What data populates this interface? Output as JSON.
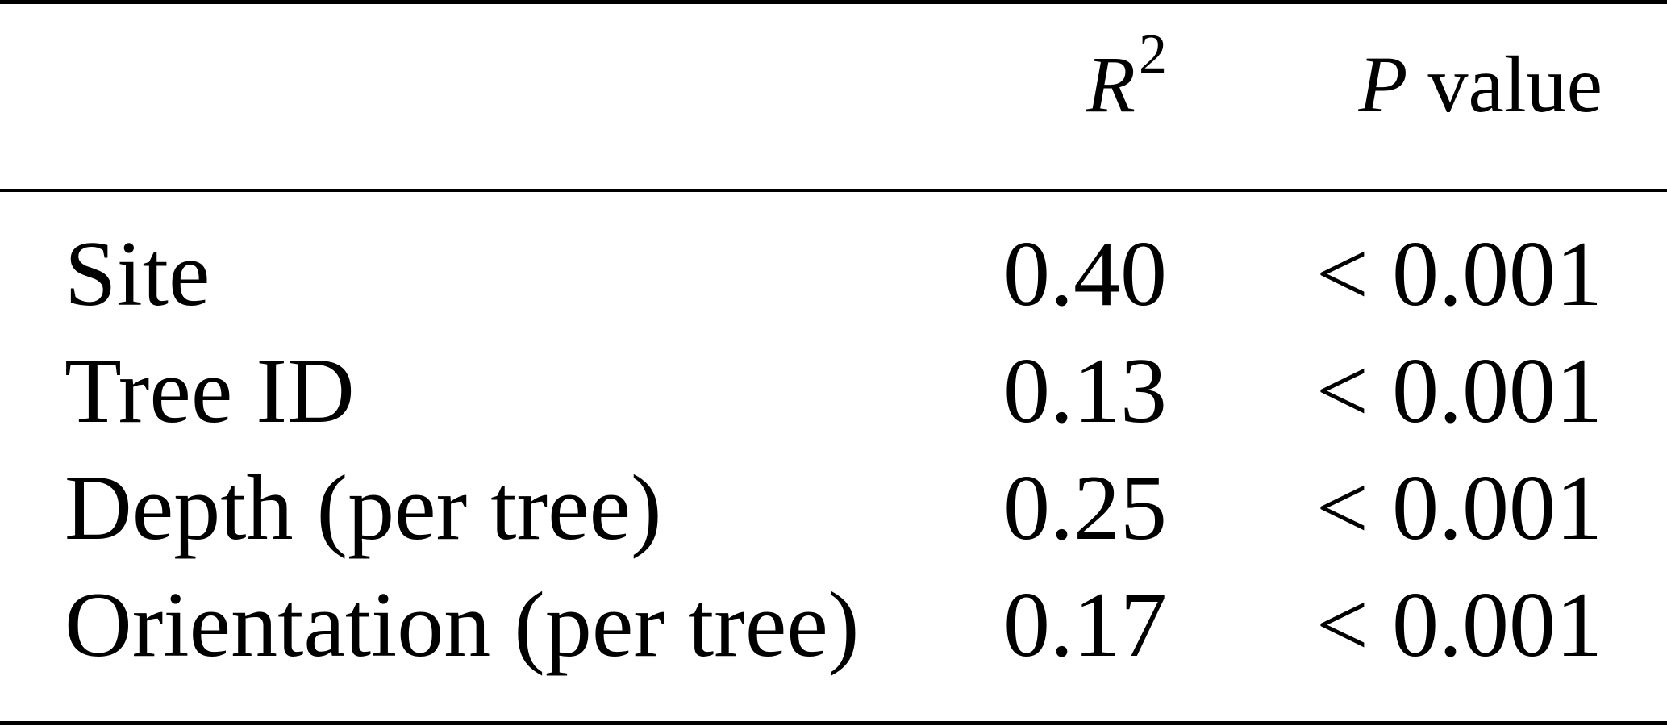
{
  "table": {
    "header": {
      "label_col": "",
      "r2_symbol": "R",
      "r2_superscript": "2",
      "p_symbol": "P",
      "p_suffix": "value"
    },
    "rows": [
      {
        "label": "Site",
        "r2": "0.40",
        "p_value": "< 0.001"
      },
      {
        "label": "Tree ID",
        "r2": "0.13",
        "p_value": "< 0.001"
      },
      {
        "label": "Depth (per tree)",
        "r2": "0.25",
        "p_value": "< 0.001"
      },
      {
        "label": "Orientation (per tree)",
        "r2": "0.17",
        "p_value": "< 0.001"
      }
    ]
  }
}
